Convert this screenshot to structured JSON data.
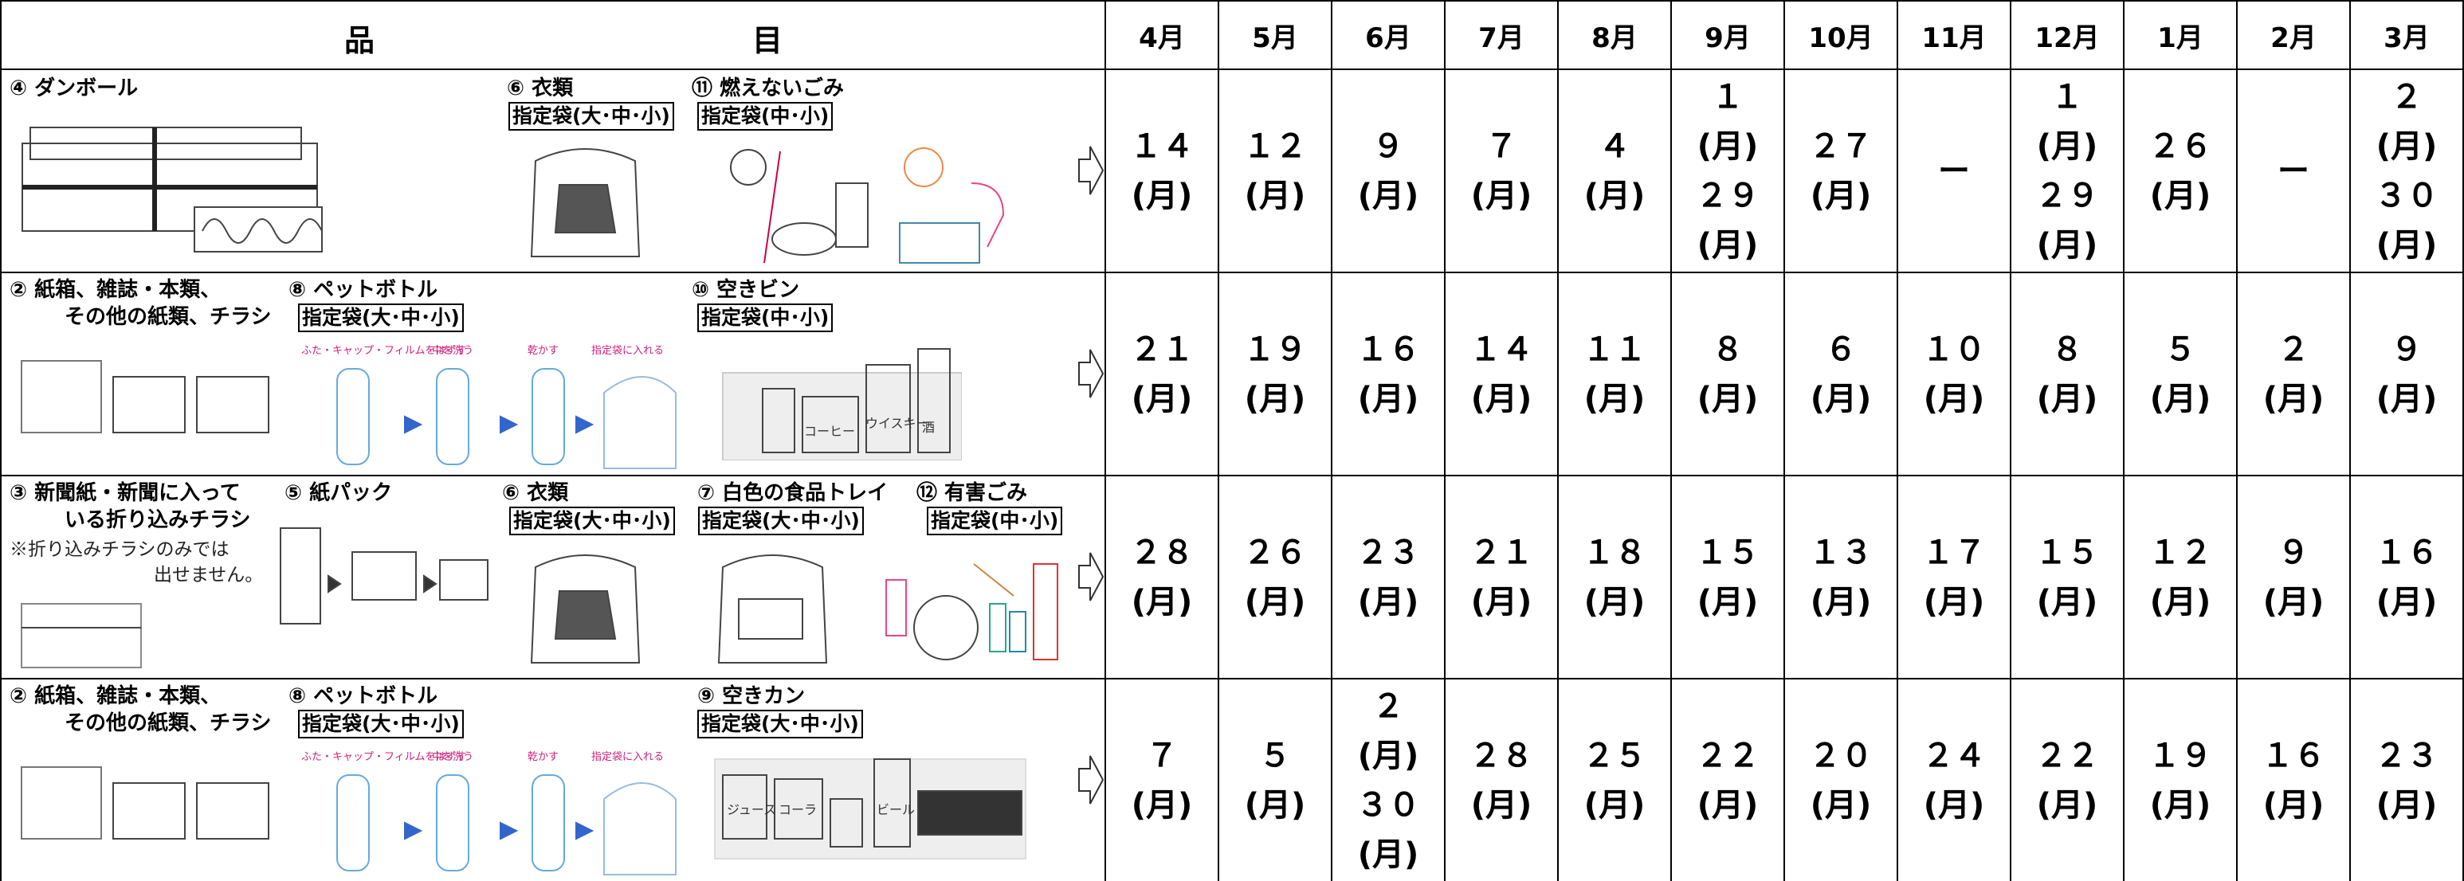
{
  "header": {
    "item": [
      "品",
      "目"
    ],
    "months": [
      "4月",
      "5月",
      "6月",
      "7月",
      "8月",
      "9月",
      "10月",
      "11月",
      "12月",
      "1月",
      "2月",
      "3月"
    ]
  },
  "rows": [
    {
      "items": [
        {
          "label": [
            "④ ダンボール"
          ]
        },
        {
          "label": [
            "⑥ 衣類"
          ],
          "bag": "指定袋(大･中･小)"
        },
        {
          "label": [
            "⑪ 燃えないごみ"
          ],
          "bag": "指定袋(中･小)"
        }
      ],
      "dates": [
        [
          "１４",
          "(月)"
        ],
        [
          "１２",
          "(月)"
        ],
        [
          "９",
          "(月)"
        ],
        [
          "７",
          "(月)"
        ],
        [
          "４",
          "(月)"
        ],
        [
          "１",
          "(月)",
          "２９",
          "(月)"
        ],
        [
          "２７",
          "(月)"
        ],
        [
          "ー"
        ],
        [
          "１",
          "(月)",
          "２９",
          "(月)"
        ],
        [
          "２６",
          "(月)"
        ],
        [
          "ー"
        ],
        [
          "２",
          "(月)",
          "３０",
          "(月)"
        ]
      ]
    },
    {
      "items": [
        {
          "label": [
            "② 紙箱、雑誌・本類、",
            "その他の紙類、チラシ"
          ]
        },
        {
          "label": [
            "⑧ ペットボトル"
          ],
          "bag": "指定袋(大･中･小)",
          "steps": [
            "ふた・キャップ・フィルムをはずす",
            "中を洗う",
            "乾かす",
            "指定袋に入れる"
          ]
        },
        {
          "label": [
            "⑩ 空きビン"
          ],
          "bag": "指定袋(中･小)",
          "image_texts": [
            "コーヒー",
            "ウイスキー",
            "酒"
          ]
        }
      ],
      "dates": [
        [
          "２１",
          "(月)"
        ],
        [
          "１９",
          "(月)"
        ],
        [
          "１６",
          "(月)"
        ],
        [
          "１４",
          "(月)"
        ],
        [
          "１１",
          "(月)"
        ],
        [
          "８",
          "(月)"
        ],
        [
          "６",
          "(月)"
        ],
        [
          "１０",
          "(月)"
        ],
        [
          "８",
          "(月)"
        ],
        [
          "５",
          "(月)"
        ],
        [
          "２",
          "(月)"
        ],
        [
          "９",
          "(月)"
        ]
      ]
    },
    {
      "items": [
        {
          "label": [
            "③ 新聞紙・新聞に入って",
            "いる折り込みチラシ"
          ],
          "note": [
            "※折り込みチラシのみでは",
            "出せません。"
          ]
        },
        {
          "label": [
            "⑤ 紙パック"
          ]
        },
        {
          "label": [
            "⑥ 衣類"
          ],
          "bag": "指定袋(大･中･小)"
        },
        {
          "label": [
            "⑦ 白色の食品トレイ"
          ],
          "bag": "指定袋(大･中･小)"
        },
        {
          "label": [
            "⑫ 有害ごみ"
          ],
          "bag": "指定袋(中･小)"
        }
      ],
      "dates": [
        [
          "２８",
          "(月)"
        ],
        [
          "２６",
          "(月)"
        ],
        [
          "２３",
          "(月)"
        ],
        [
          "２１",
          "(月)"
        ],
        [
          "１８",
          "(月)"
        ],
        [
          "１５",
          "(月)"
        ],
        [
          "１３",
          "(月)"
        ],
        [
          "１７",
          "(月)"
        ],
        [
          "１５",
          "(月)"
        ],
        [
          "１２",
          "(月)"
        ],
        [
          "９",
          "(月)"
        ],
        [
          "１６",
          "(月)"
        ]
      ]
    },
    {
      "items": [
        {
          "label": [
            "② 紙箱、雑誌・本類、",
            "その他の紙類、チラシ"
          ]
        },
        {
          "label": [
            "⑧ ペットボトル"
          ],
          "bag": "指定袋(大･中･小)",
          "steps": [
            "ふた・キャップ・フィルムをはずす",
            "中を洗う",
            "乾かす",
            "指定袋に入れる"
          ]
        },
        {
          "label": [
            "⑨ 空きカン"
          ],
          "bag": "指定袋(大･中･小)",
          "image_texts": [
            "ジュース",
            "コーラ",
            "ビール"
          ]
        }
      ],
      "dates": [
        [
          "７",
          "(月)"
        ],
        [
          "５",
          "(月)"
        ],
        [
          "２",
          "(月)",
          "３０",
          "(月)"
        ],
        [
          "２８",
          "(月)"
        ],
        [
          "２５",
          "(月)"
        ],
        [
          "２２",
          "(月)"
        ],
        [
          "２０",
          "(月)"
        ],
        [
          "２４",
          "(月)"
        ],
        [
          "２２",
          "(月)"
        ],
        [
          "１９",
          "(月)"
        ],
        [
          "１６",
          "(月)"
        ],
        [
          "２３",
          "(月)"
        ]
      ]
    }
  ]
}
